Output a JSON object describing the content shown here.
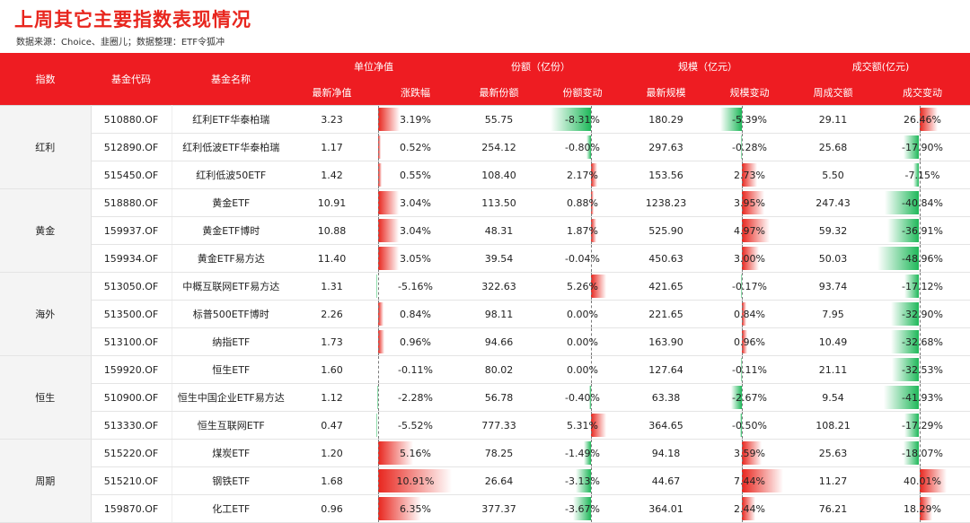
{
  "title": "上周其它主要指数表现情况",
  "subtitle": "数据来源：Choice、韭圈儿；数据整理：ETF令狐冲",
  "header": {
    "index": "指数",
    "code": "基金代码",
    "name": "基金名称",
    "nav_group": "单位净值",
    "share_group": "份额（亿份）",
    "scale_group": "规模（亿元）",
    "turnover_group": "成交额(亿元)",
    "nav": "最新净值",
    "nav_chg": "涨跌幅",
    "share": "最新份额",
    "share_chg": "份额变动",
    "scale": "最新规模",
    "scale_chg": "规模变动",
    "turnover": "周成交额",
    "turnover_chg": "成交变动"
  },
  "groups": [
    {
      "name": "红利",
      "rows": [
        {
          "code": "510880.OF",
          "name": "红利ETF华泰柏瑞",
          "nav": "3.23",
          "nav_chg": "3.19%",
          "share": "55.75",
          "share_chg": "-8.31%",
          "scale": "180.29",
          "scale_chg": "-5.39%",
          "turnover": "29.11",
          "turnover_chg": "26.46%"
        },
        {
          "code": "512890.OF",
          "name": "红利低波ETF华泰柏瑞",
          "nav": "1.17",
          "nav_chg": "0.52%",
          "share": "254.12",
          "share_chg": "-0.80%",
          "scale": "297.63",
          "scale_chg": "-0.28%",
          "turnover": "25.68",
          "turnover_chg": "-17.90%"
        },
        {
          "code": "515450.OF",
          "name": "红利低波50ETF",
          "nav": "1.42",
          "nav_chg": "0.55%",
          "share": "108.40",
          "share_chg": "2.17%",
          "scale": "153.56",
          "scale_chg": "2.73%",
          "turnover": "5.50",
          "turnover_chg": "-7.15%"
        }
      ]
    },
    {
      "name": "黄金",
      "rows": [
        {
          "code": "518880.OF",
          "name": "黄金ETF",
          "nav": "10.91",
          "nav_chg": "3.04%",
          "share": "113.50",
          "share_chg": "0.88%",
          "scale": "1238.23",
          "scale_chg": "3.95%",
          "turnover": "247.43",
          "turnover_chg": "-40.84%"
        },
        {
          "code": "159937.OF",
          "name": "黄金ETF博时",
          "nav": "10.88",
          "nav_chg": "3.04%",
          "share": "48.31",
          "share_chg": "1.87%",
          "scale": "525.90",
          "scale_chg": "4.97%",
          "turnover": "59.32",
          "turnover_chg": "-36.91%"
        },
        {
          "code": "159934.OF",
          "name": "黄金ETF易方达",
          "nav": "11.40",
          "nav_chg": "3.05%",
          "share": "39.54",
          "share_chg": "-0.04%",
          "scale": "450.63",
          "scale_chg": "3.00%",
          "turnover": "50.03",
          "turnover_chg": "-48.96%"
        }
      ]
    },
    {
      "name": "海外",
      "rows": [
        {
          "code": "513050.OF",
          "name": "中概互联网ETF易方达",
          "nav": "1.31",
          "nav_chg": "-5.16%",
          "share": "322.63",
          "share_chg": "5.26%",
          "scale": "421.65",
          "scale_chg": "-0.17%",
          "turnover": "93.74",
          "turnover_chg": "-17.12%"
        },
        {
          "code": "513500.OF",
          "name": "标普500ETF博时",
          "nav": "2.26",
          "nav_chg": "0.84%",
          "share": "98.11",
          "share_chg": "0.00%",
          "scale": "221.65",
          "scale_chg": "0.84%",
          "turnover": "7.95",
          "turnover_chg": "-32.90%"
        },
        {
          "code": "513100.OF",
          "name": "纳指ETF",
          "nav": "1.73",
          "nav_chg": "0.96%",
          "share": "94.66",
          "share_chg": "0.00%",
          "scale": "163.90",
          "scale_chg": "0.96%",
          "turnover": "10.49",
          "turnover_chg": "-32.68%"
        }
      ]
    },
    {
      "name": "恒生",
      "rows": [
        {
          "code": "159920.OF",
          "name": "恒生ETF",
          "nav": "1.60",
          "nav_chg": "-0.11%",
          "share": "80.02",
          "share_chg": "0.00%",
          "scale": "127.64",
          "scale_chg": "-0.11%",
          "turnover": "21.11",
          "turnover_chg": "-32.53%"
        },
        {
          "code": "510900.OF",
          "name": "恒生中国企业ETF易方达",
          "nav": "1.12",
          "nav_chg": "-2.28%",
          "share": "56.78",
          "share_chg": "-0.40%",
          "scale": "63.38",
          "scale_chg": "-2.67%",
          "turnover": "9.54",
          "turnover_chg": "-41.93%"
        },
        {
          "code": "513330.OF",
          "name": "恒生互联网ETF",
          "nav": "0.47",
          "nav_chg": "-5.52%",
          "share": "777.33",
          "share_chg": "5.31%",
          "scale": "364.65",
          "scale_chg": "-0.50%",
          "turnover": "108.21",
          "turnover_chg": "-17.29%"
        }
      ]
    },
    {
      "name": "周期",
      "rows": [
        {
          "code": "515220.OF",
          "name": "煤炭ETF",
          "nav": "1.20",
          "nav_chg": "5.16%",
          "share": "78.25",
          "share_chg": "-1.49%",
          "scale": "94.18",
          "scale_chg": "3.59%",
          "turnover": "25.63",
          "turnover_chg": "-18.07%"
        },
        {
          "code": "515210.OF",
          "name": "钢铁ETF",
          "nav": "1.68",
          "nav_chg": "10.91%",
          "share": "26.64",
          "share_chg": "-3.13%",
          "scale": "44.67",
          "scale_chg": "7.44%",
          "turnover": "11.27",
          "turnover_chg": "40.01%"
        },
        {
          "code": "159870.OF",
          "name": "化工ETF",
          "nav": "0.96",
          "nav_chg": "6.35%",
          "share": "377.37",
          "share_chg": "-3.67%",
          "scale": "364.01",
          "scale_chg": "2.44%",
          "turnover": "76.21",
          "turnover_chg": "18.29%"
        }
      ]
    }
  ]
}
